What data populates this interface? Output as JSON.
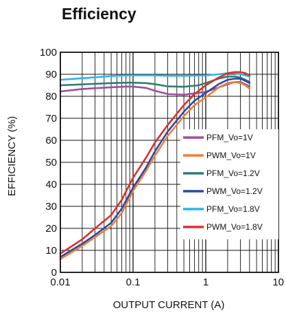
{
  "chart_data": {
    "type": "line",
    "title": "Efficiency",
    "xlabel": "OUTPUT CURRENT (A)",
    "ylabel": "EFFICIENCY (%)",
    "xscale": "log",
    "xlim": [
      0.01,
      10
    ],
    "ylim": [
      0,
      100
    ],
    "xticks": [
      0.01,
      0.1,
      1,
      10
    ],
    "xtick_labels": [
      "0.01",
      "0.1",
      "1",
      "10"
    ],
    "yticks": [
      0,
      10,
      20,
      30,
      40,
      50,
      60,
      70,
      80,
      90,
      100
    ],
    "ytick_labels": [
      "0",
      "10",
      "20",
      "30",
      "40",
      "50",
      "60",
      "70",
      "80",
      "90",
      "100"
    ],
    "grid": true,
    "legend_position": "right",
    "series": [
      {
        "name": "PFM_Vo=1V",
        "color": "#9b4f9e",
        "points": [
          [
            0.01,
            82.2
          ],
          [
            0.02,
            83.3
          ],
          [
            0.05,
            84.1
          ],
          [
            0.08,
            84.4
          ],
          [
            0.1,
            84.4
          ],
          [
            0.15,
            83.8
          ],
          [
            0.2,
            82.5
          ],
          [
            0.3,
            81.0
          ],
          [
            0.5,
            80.7
          ],
          [
            0.8,
            81.6
          ],
          [
            1.0,
            82.0
          ],
          [
            1.5,
            84.0
          ],
          [
            2.0,
            85.5
          ],
          [
            2.5,
            86.5
          ],
          [
            3.0,
            86.5
          ],
          [
            3.5,
            85.5
          ],
          [
            4.0,
            84.5
          ]
        ]
      },
      {
        "name": "PWM_Vo=1V",
        "color": "#f07f36",
        "points": [
          [
            0.01,
            6.0
          ],
          [
            0.02,
            12.0
          ],
          [
            0.03,
            16.0
          ],
          [
            0.05,
            21.0
          ],
          [
            0.07,
            27.0
          ],
          [
            0.1,
            37.0
          ],
          [
            0.15,
            46.0
          ],
          [
            0.2,
            53.0
          ],
          [
            0.3,
            62.0
          ],
          [
            0.5,
            71.0
          ],
          [
            0.7,
            76.0
          ],
          [
            1.0,
            79.5
          ],
          [
            1.5,
            84.0
          ],
          [
            2.0,
            86.0
          ],
          [
            2.5,
            86.5
          ],
          [
            3.0,
            86.0
          ],
          [
            3.5,
            85.0
          ],
          [
            4.0,
            83.5
          ]
        ]
      },
      {
        "name": "PFM_Vo=1.2V",
        "color": "#2e7d74",
        "points": [
          [
            0.01,
            85.0
          ],
          [
            0.02,
            85.4
          ],
          [
            0.05,
            86.0
          ],
          [
            0.08,
            86.2
          ],
          [
            0.1,
            86.2
          ],
          [
            0.15,
            86.0
          ],
          [
            0.2,
            85.5
          ],
          [
            0.3,
            84.5
          ],
          [
            0.5,
            84.3
          ],
          [
            0.8,
            85.0
          ],
          [
            1.0,
            86.0
          ],
          [
            1.5,
            88.0
          ],
          [
            2.0,
            89.0
          ],
          [
            2.5,
            89.0
          ],
          [
            3.0,
            88.5
          ],
          [
            3.5,
            87.5
          ],
          [
            4.0,
            86.5
          ]
        ]
      },
      {
        "name": "PWM_Vo=1.2V",
        "color": "#2b4aa1",
        "points": [
          [
            0.01,
            7.0
          ],
          [
            0.02,
            13.0
          ],
          [
            0.03,
            17.0
          ],
          [
            0.05,
            22.5
          ],
          [
            0.07,
            29.0
          ],
          [
            0.1,
            38.5
          ],
          [
            0.15,
            47.5
          ],
          [
            0.2,
            55.0
          ],
          [
            0.3,
            64.0
          ],
          [
            0.5,
            73.0
          ],
          [
            0.7,
            78.0
          ],
          [
            1.0,
            81.5
          ],
          [
            1.5,
            85.5
          ],
          [
            2.0,
            87.5
          ],
          [
            2.5,
            88.0
          ],
          [
            3.0,
            88.0
          ],
          [
            3.5,
            87.0
          ],
          [
            4.0,
            86.0
          ]
        ]
      },
      {
        "name": "PFM_Vo=1.8V",
        "color": "#29b6e8",
        "points": [
          [
            0.01,
            87.5
          ],
          [
            0.02,
            88.2
          ],
          [
            0.05,
            89.2
          ],
          [
            0.08,
            89.5
          ],
          [
            0.1,
            89.5
          ],
          [
            0.2,
            89.5
          ],
          [
            0.3,
            89.3
          ],
          [
            0.5,
            89.3
          ],
          [
            1.0,
            89.5
          ],
          [
            1.5,
            90.0
          ],
          [
            2.0,
            90.5
          ],
          [
            2.5,
            90.5
          ],
          [
            3.0,
            90.0
          ],
          [
            3.5,
            89.5
          ],
          [
            4.0,
            89.0
          ]
        ]
      },
      {
        "name": "PWM_Vo=1.8V",
        "color": "#e32c2c",
        "points": [
          [
            0.01,
            8.5
          ],
          [
            0.02,
            15.0
          ],
          [
            0.03,
            20.0
          ],
          [
            0.05,
            26.0
          ],
          [
            0.07,
            33.0
          ],
          [
            0.1,
            43.0
          ],
          [
            0.15,
            52.0
          ],
          [
            0.2,
            59.0
          ],
          [
            0.3,
            67.0
          ],
          [
            0.5,
            76.0
          ],
          [
            0.7,
            81.0
          ],
          [
            1.0,
            85.0
          ],
          [
            1.5,
            88.5
          ],
          [
            2.0,
            90.5
          ],
          [
            2.5,
            91.0
          ],
          [
            3.0,
            91.0
          ],
          [
            3.5,
            90.5
          ],
          [
            4.0,
            89.5
          ]
        ]
      }
    ]
  }
}
